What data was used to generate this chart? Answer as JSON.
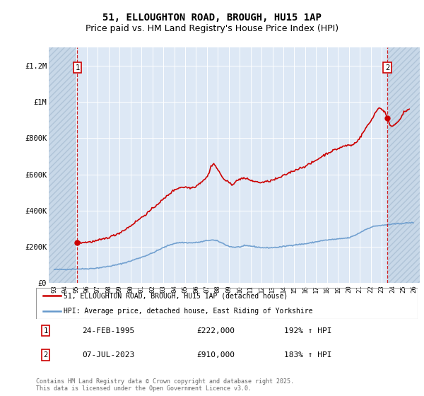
{
  "title": "51, ELLOUGHTON ROAD, BROUGH, HU15 1AP",
  "subtitle": "Price paid vs. HM Land Registry's House Price Index (HPI)",
  "title_fontsize": 10,
  "subtitle_fontsize": 9,
  "legend1": "51, ELLOUGHTON ROAD, BROUGH, HU15 1AP (detached house)",
  "legend2": "HPI: Average price, detached house, East Riding of Yorkshire",
  "point1_date": "24-FEB-1995",
  "point1_price": "£222,000",
  "point1_hpi": "192% ↑ HPI",
  "point2_date": "07-JUL-2023",
  "point2_price": "£910,000",
  "point2_hpi": "183% ↑ HPI",
  "footer": "Contains HM Land Registry data © Crown copyright and database right 2025.\nThis data is licensed under the Open Government Licence v3.0.",
  "plot_bg": "#dde8f5",
  "hatch_color": "#c8d8e8",
  "red_color": "#cc0000",
  "blue_color": "#6699cc",
  "ylim": [
    0,
    1300000
  ],
  "xlim_left": 1992.5,
  "xlim_right": 2026.5,
  "hatch_left_end": 1995.05,
  "hatch_right_start": 2023.6,
  "point1_x": 1995.12,
  "point1_y": 222000,
  "point2_x": 2023.52,
  "point2_y": 910000,
  "yticks": [
    0,
    200000,
    400000,
    600000,
    800000,
    1000000,
    1200000
  ],
  "ytick_labels": [
    "£0",
    "£200K",
    "£400K",
    "£600K",
    "£800K",
    "£1M",
    "£1.2M"
  ],
  "xticks": [
    1993,
    1994,
    1995,
    1996,
    1997,
    1998,
    1999,
    2000,
    2001,
    2002,
    2003,
    2004,
    2005,
    2006,
    2007,
    2008,
    2009,
    2010,
    2011,
    2012,
    2013,
    2014,
    2015,
    2016,
    2017,
    2018,
    2019,
    2020,
    2021,
    2022,
    2023,
    2024,
    2025,
    2026
  ]
}
